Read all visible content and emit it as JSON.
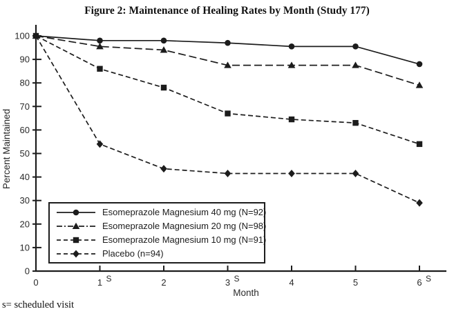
{
  "footnote": "s= scheduled visit",
  "chart_data": {
    "type": "line",
    "title": "Figure 2: Maintenance of Healing Rates by Month (Study 177)",
    "xlabel": "Month",
    "ylabel": "Percent Maintained",
    "x": [
      0,
      1,
      2,
      3,
      4,
      5,
      6
    ],
    "x_tick_labels": [
      "0",
      "1",
      "2",
      "3",
      "4",
      "5",
      "6"
    ],
    "scheduled_visit_months": [
      1,
      3,
      6
    ],
    "scheduled_visit_mark": "S",
    "y_ticks": [
      0,
      10,
      20,
      30,
      40,
      50,
      60,
      70,
      80,
      90,
      100
    ],
    "ylim": [
      0,
      100
    ],
    "grid": false,
    "legend_position": "lower-left",
    "line_color": "#1c1c1c",
    "series": [
      {
        "label": "Esomeprazole Magnesium 40 mg (N=92)",
        "marker": "circle",
        "line": "solid",
        "values": [
          100,
          98,
          98,
          97,
          95.5,
          95.5,
          88
        ]
      },
      {
        "label": "Esomeprazole Magnesium 20 mg (N=98)",
        "marker": "triangle",
        "line": "long-dash",
        "values": [
          100,
          95.5,
          94,
          87.5,
          87.5,
          87.5,
          79
        ]
      },
      {
        "label": "Esomeprazole Magnesium 10 mg (N=91)",
        "marker": "square",
        "line": "dash",
        "values": [
          100,
          86,
          78,
          67,
          64.5,
          63,
          54
        ]
      },
      {
        "label": "Placebo (n=94)",
        "marker": "diamond",
        "line": "dash",
        "values": [
          100,
          54,
          43.5,
          41.5,
          41.5,
          41.5,
          29
        ]
      }
    ]
  }
}
